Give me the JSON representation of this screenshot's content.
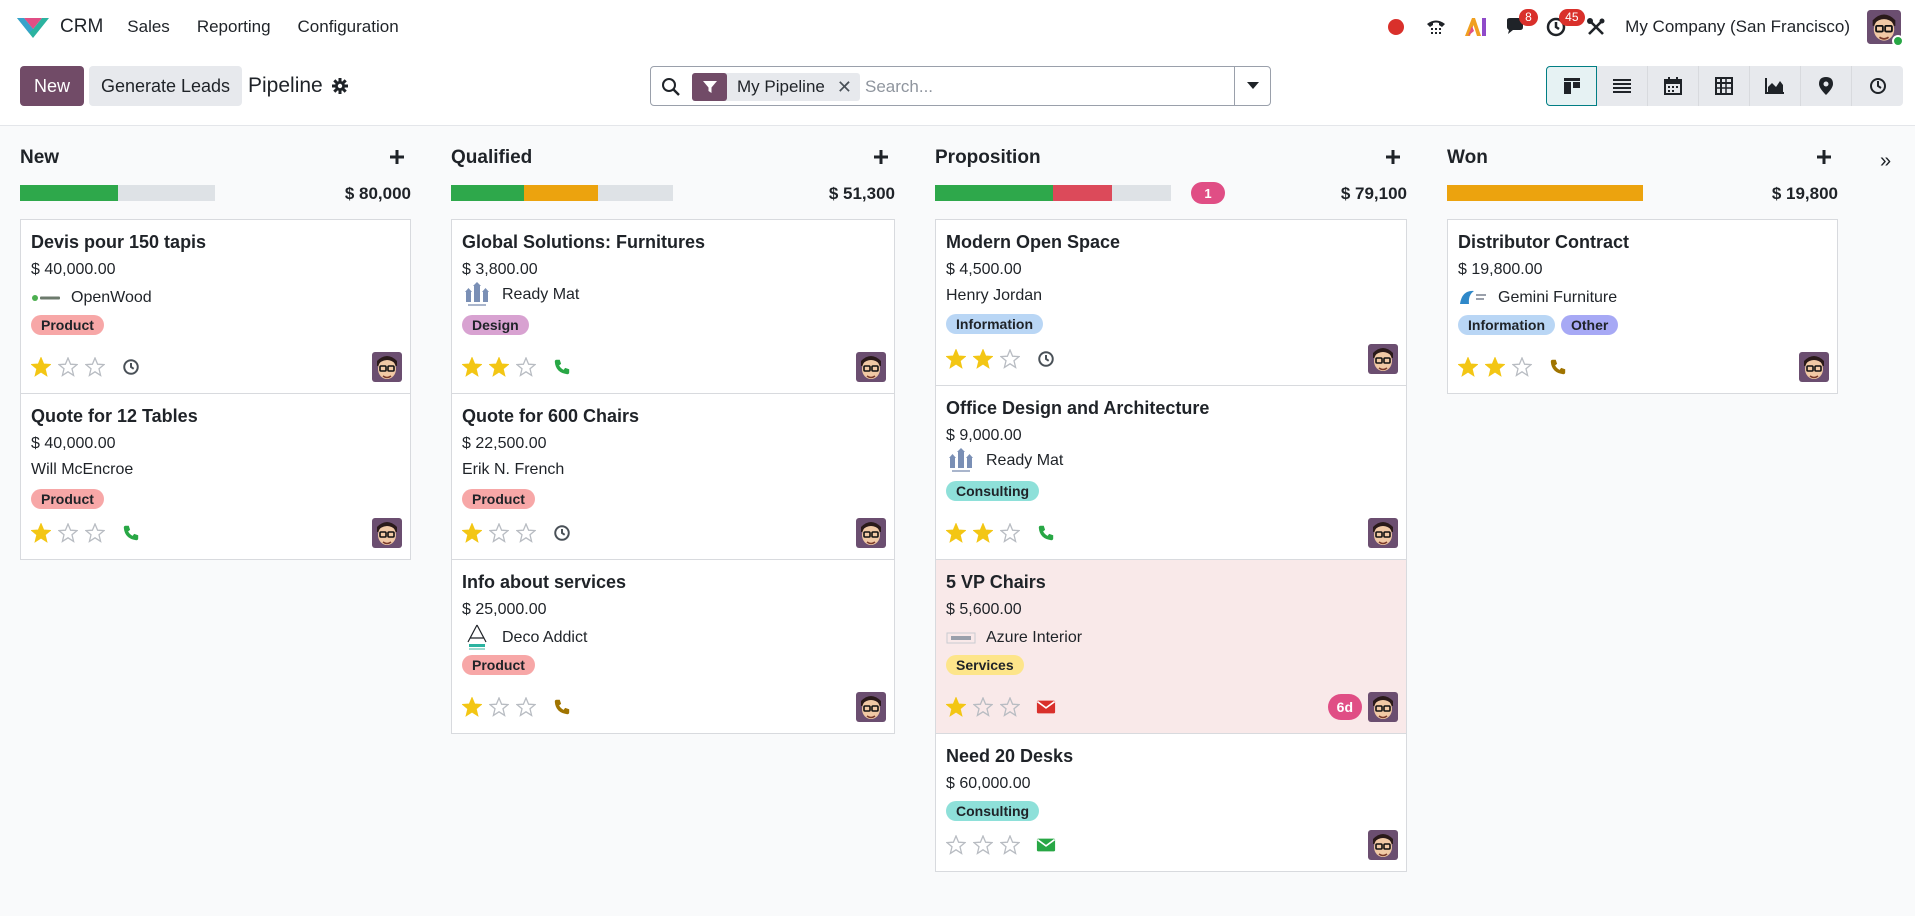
{
  "app": {
    "name": "CRM",
    "menu": [
      "Sales",
      "Reporting",
      "Configuration"
    ],
    "company": "My Company (San Francisco)",
    "badges": {
      "discuss": "8",
      "activities": "45"
    }
  },
  "controlbar": {
    "new_label": "New",
    "generate_label": "Generate Leads",
    "breadcrumb": "Pipeline",
    "search": {
      "facet": "My Pipeline",
      "placeholder": "Search..."
    }
  },
  "columns": [
    {
      "title": "New",
      "total": "$ 80,000",
      "count": "",
      "progress": [
        {
          "color": "#2ea84b",
          "value": 0.5
        }
      ],
      "cards": [
        {
          "title": "Devis pour 150 tapis",
          "amount": "$ 40,000.00",
          "partner": "OpenWood",
          "logo": "openwood",
          "tags": [
            {
              "label": "Product",
              "type": "product"
            }
          ],
          "stars": 1,
          "activity": "clock",
          "activity_color": "#495057",
          "overdue": "",
          "highlight": false
        },
        {
          "title": "Quote for 12 Tables",
          "amount": "$ 40,000.00",
          "partner": "Will McEncroe",
          "logo": "",
          "tags": [
            {
              "label": "Product",
              "type": "product"
            }
          ],
          "stars": 1,
          "activity": "phone",
          "activity_color": "#28a745",
          "overdue": "",
          "highlight": false
        }
      ]
    },
    {
      "title": "Qualified",
      "total": "$ 51,300",
      "count": "",
      "progress": [
        {
          "color": "#2ea84b",
          "value": 0.33
        },
        {
          "color": "#eca30e",
          "value": 0.33
        }
      ],
      "cards": [
        {
          "title": "Global Solutions: Furnitures",
          "amount": "$ 3,800.00",
          "partner": "Ready Mat",
          "logo": "readymat",
          "tags": [
            {
              "label": "Design",
              "type": "design"
            }
          ],
          "stars": 2,
          "activity": "phone",
          "activity_color": "#28a745",
          "overdue": "",
          "highlight": false
        },
        {
          "title": "Quote for 600 Chairs",
          "amount": "$ 22,500.00",
          "partner": "Erik N. French",
          "logo": "",
          "tags": [
            {
              "label": "Product",
              "type": "product"
            }
          ],
          "stars": 1,
          "activity": "clock",
          "activity_color": "#495057",
          "overdue": "",
          "highlight": false
        },
        {
          "title": "Info about services",
          "amount": "$ 25,000.00",
          "partner": "Deco Addict",
          "logo": "deco",
          "tags": [
            {
              "label": "Product",
              "type": "product"
            }
          ],
          "stars": 1,
          "activity": "phone",
          "activity_color": "#a07400",
          "overdue": "",
          "highlight": false
        }
      ]
    },
    {
      "title": "Proposition",
      "total": "$ 79,100",
      "count": "1",
      "progress": [
        {
          "color": "#2ea84b",
          "value": 0.5
        },
        {
          "color": "#dc4a5a",
          "value": 0.25
        }
      ],
      "cards": [
        {
          "title": "Modern Open Space",
          "amount": "$ 4,500.00",
          "partner": "Henry Jordan",
          "logo": "",
          "tags": [
            {
              "label": "Information",
              "type": "info"
            }
          ],
          "stars": 2,
          "activity": "clock",
          "activity_color": "#495057",
          "overdue": "",
          "highlight": false
        },
        {
          "title": "Office Design and Architecture",
          "amount": "$ 9,000.00",
          "partner": "Ready Mat",
          "logo": "readymat",
          "tags": [
            {
              "label": "Consulting",
              "type": "consult"
            }
          ],
          "stars": 2,
          "activity": "phone",
          "activity_color": "#28a745",
          "overdue": "",
          "highlight": false
        },
        {
          "title": "5 VP Chairs",
          "amount": "$ 5,600.00",
          "partner": "Azure Interior",
          "logo": "azure",
          "tags": [
            {
              "label": "Services",
              "type": "services"
            }
          ],
          "stars": 1,
          "activity": "mail",
          "activity_color": "#d9302b",
          "overdue": "6d",
          "highlight": true
        },
        {
          "title": "Need 20 Desks",
          "amount": "$ 60,000.00",
          "partner": "",
          "logo": "",
          "tags": [
            {
              "label": "Consulting",
              "type": "consult"
            }
          ],
          "stars": 0,
          "activity": "mail",
          "activity_color": "#28a745",
          "overdue": "",
          "highlight": false
        }
      ]
    },
    {
      "title": "Won",
      "total": "$ 19,800",
      "count": "",
      "progress": [
        {
          "color": "#eca30e",
          "value": 1.0
        }
      ],
      "cards": [
        {
          "title": "Distributor Contract",
          "amount": "$ 19,800.00",
          "partner": "Gemini Furniture",
          "logo": "gemini",
          "tags": [
            {
              "label": "Information",
              "type": "info"
            },
            {
              "label": "Other",
              "type": "other"
            }
          ],
          "stars": 2,
          "activity": "phone",
          "activity_color": "#a07400",
          "overdue": "",
          "highlight": false
        }
      ]
    }
  ]
}
